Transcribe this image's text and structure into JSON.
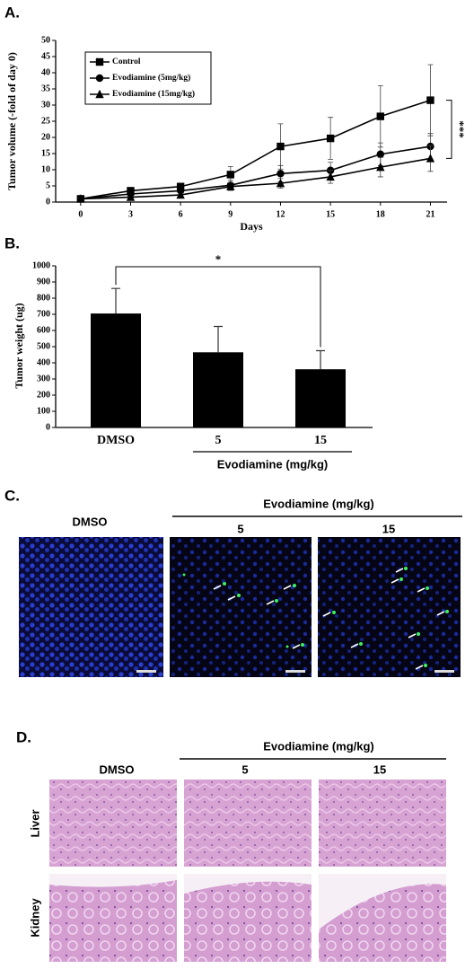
{
  "chart_data": [
    {
      "type": "line",
      "panel_label": "A.",
      "y_label": "Tumor volume (-fold of day 0)",
      "x_label": "Days",
      "annotation": "***",
      "x": [
        0,
        3,
        6,
        9,
        12,
        15,
        18,
        21
      ],
      "xlim": [
        -1.5,
        22
      ],
      "xticks": [
        0,
        3,
        6,
        9,
        12,
        15,
        18,
        21
      ],
      "ylim": [
        0,
        50
      ],
      "yticks": [
        0,
        5,
        10,
        15,
        20,
        25,
        30,
        35,
        40,
        45,
        50
      ],
      "legend": "upper left",
      "series": [
        {
          "name": "Control",
          "color": "#000000",
          "marker": "square",
          "values": [
            1,
            3.5,
            4.8,
            8.5,
            17.2,
            19.7,
            26.5,
            31.5
          ],
          "errors": [
            0.2,
            0.5,
            0.8,
            2.5,
            7,
            6.5,
            9.5,
            11
          ]
        },
        {
          "name": "Evodiamine (5mg/kg)",
          "color": "#000000",
          "marker": "circle",
          "values": [
            1,
            2.5,
            3.5,
            5.2,
            8.8,
            9.8,
            14.8,
            17.2
          ],
          "errors": [
            0.2,
            0.4,
            0.6,
            1.5,
            2.5,
            2.5,
            3.5,
            4
          ]
        },
        {
          "name": "Evodiamine (15mg/kg)",
          "color": "#000000",
          "marker": "triangle",
          "values": [
            1,
            1.5,
            2.2,
            4.8,
            5.8,
            7.8,
            10.8,
            13.5
          ],
          "errors": [
            0.2,
            0.3,
            0.5,
            1.2,
            1.5,
            2,
            3,
            4
          ]
        }
      ]
    },
    {
      "type": "bar",
      "panel_label": "B.",
      "y_label": "Tumor weight (ug)",
      "annotation": "*",
      "x_group_label": "Evodiamine (mg/kg)",
      "categories": [
        "DMSO",
        "5",
        "15"
      ],
      "values": [
        705,
        465,
        360
      ],
      "errors": [
        155,
        160,
        115
      ],
      "color": "#000000",
      "ylim": [
        0,
        1000
      ],
      "yticks": [
        0,
        100,
        200,
        300,
        400,
        500,
        600,
        700,
        800,
        900,
        1000
      ]
    }
  ],
  "panel_c": {
    "label": "C.",
    "group_label": "Evodiamine (mg/kg)",
    "columns": [
      "DMSO",
      "5",
      "15"
    ]
  },
  "panel_d": {
    "label": "D.",
    "group_label": "Evodiamine (mg/kg)",
    "columns": [
      "DMSO",
      "5",
      "15"
    ],
    "rows": [
      "Liver",
      "Kidney"
    ]
  }
}
